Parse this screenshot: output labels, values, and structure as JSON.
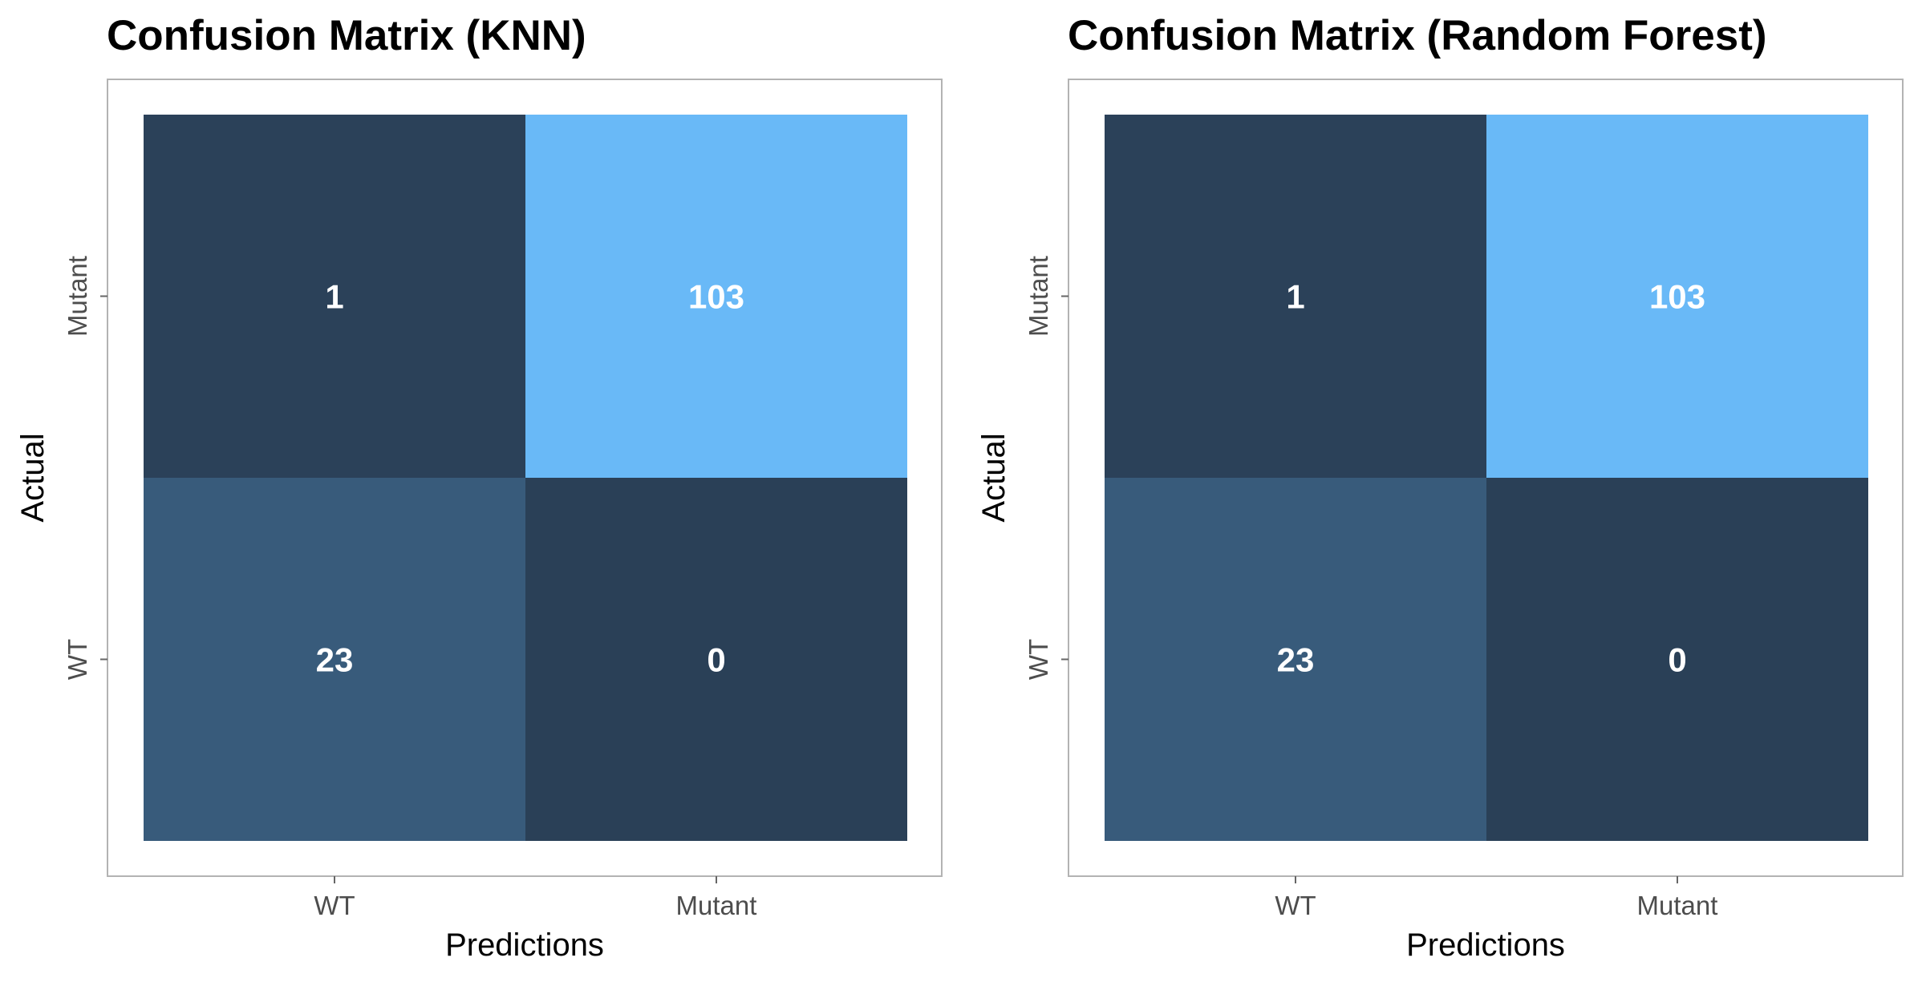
{
  "chart_data": [
    {
      "type": "heatmap",
      "title": "Confusion Matrix (KNN)",
      "xlabel": "Predictions",
      "ylabel": "Actual",
      "x_categories": [
        "WT",
        "Mutant"
      ],
      "y_categories": [
        "WT",
        "Mutant"
      ],
      "cells": [
        {
          "actual": "Mutant",
          "predicted": "WT",
          "value": 1
        },
        {
          "actual": "Mutant",
          "predicted": "Mutant",
          "value": 103
        },
        {
          "actual": "WT",
          "predicted": "WT",
          "value": 23
        },
        {
          "actual": "WT",
          "predicted": "Mutant",
          "value": 0
        }
      ],
      "color_low": "#2a4057",
      "color_high": "#69b9f7",
      "grid": false,
      "legend": "none"
    },
    {
      "type": "heatmap",
      "title": "Confusion Matrix (Random Forest)",
      "xlabel": "Predictions",
      "ylabel": "Actual",
      "x_categories": [
        "WT",
        "Mutant"
      ],
      "y_categories": [
        "WT",
        "Mutant"
      ],
      "cells": [
        {
          "actual": "Mutant",
          "predicted": "WT",
          "value": 1
        },
        {
          "actual": "Mutant",
          "predicted": "Mutant",
          "value": 103
        },
        {
          "actual": "WT",
          "predicted": "WT",
          "value": 23
        },
        {
          "actual": "WT",
          "predicted": "Mutant",
          "value": 0
        }
      ],
      "color_low": "#2a4057",
      "color_high": "#69b9f7",
      "grid": false,
      "legend": "none"
    }
  ]
}
